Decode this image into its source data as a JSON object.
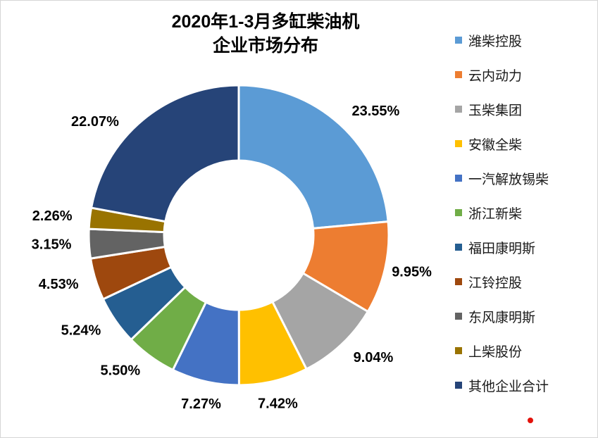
{
  "chart_data": {
    "type": "pie",
    "subtype": "donut",
    "title": "2020年1-3月多缸柴油机企业市场分布",
    "title_lines": [
      "2020年1-3月多缸柴油机",
      "企业市场分布"
    ],
    "categories": [
      "潍柴控股",
      "云内动力",
      "玉柴集团",
      "安徽全柴",
      "一汽解放锡柴",
      "浙江新柴",
      "福田康明斯",
      "江铃控股",
      "东风康明斯",
      "上柴股份",
      "其他企业合计"
    ],
    "values": [
      23.55,
      9.95,
      9.04,
      7.42,
      7.27,
      5.5,
      5.24,
      4.53,
      3.15,
      2.26,
      22.07
    ],
    "labels": [
      "23.55%",
      "9.95%",
      "9.04%",
      "7.42%",
      "7.27%",
      "5.50%",
      "5.24%",
      "4.53%",
      "3.15%",
      "2.26%",
      "22.07%"
    ],
    "colors": [
      "#5B9BD5",
      "#ED7D31",
      "#A5A5A5",
      "#FFC000",
      "#4472C4",
      "#70AD47",
      "#255E91",
      "#9E480E",
      "#636363",
      "#997300",
      "#264478"
    ],
    "units": "%",
    "legend_position": "right",
    "start_angle_deg": 0,
    "direction": "clockwise",
    "hole_ratio": 0.5,
    "grid": false
  },
  "frame": {
    "border_color": "#D6D6D6",
    "background": "#FFFFFF"
  },
  "decorations": {
    "red_dot_color": "#E3120B"
  }
}
